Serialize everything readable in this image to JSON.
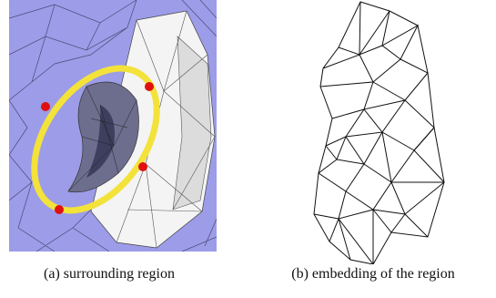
{
  "figure": {
    "captions": [
      "(a) surrounding region",
      "(b) embedding of the region"
    ]
  }
}
